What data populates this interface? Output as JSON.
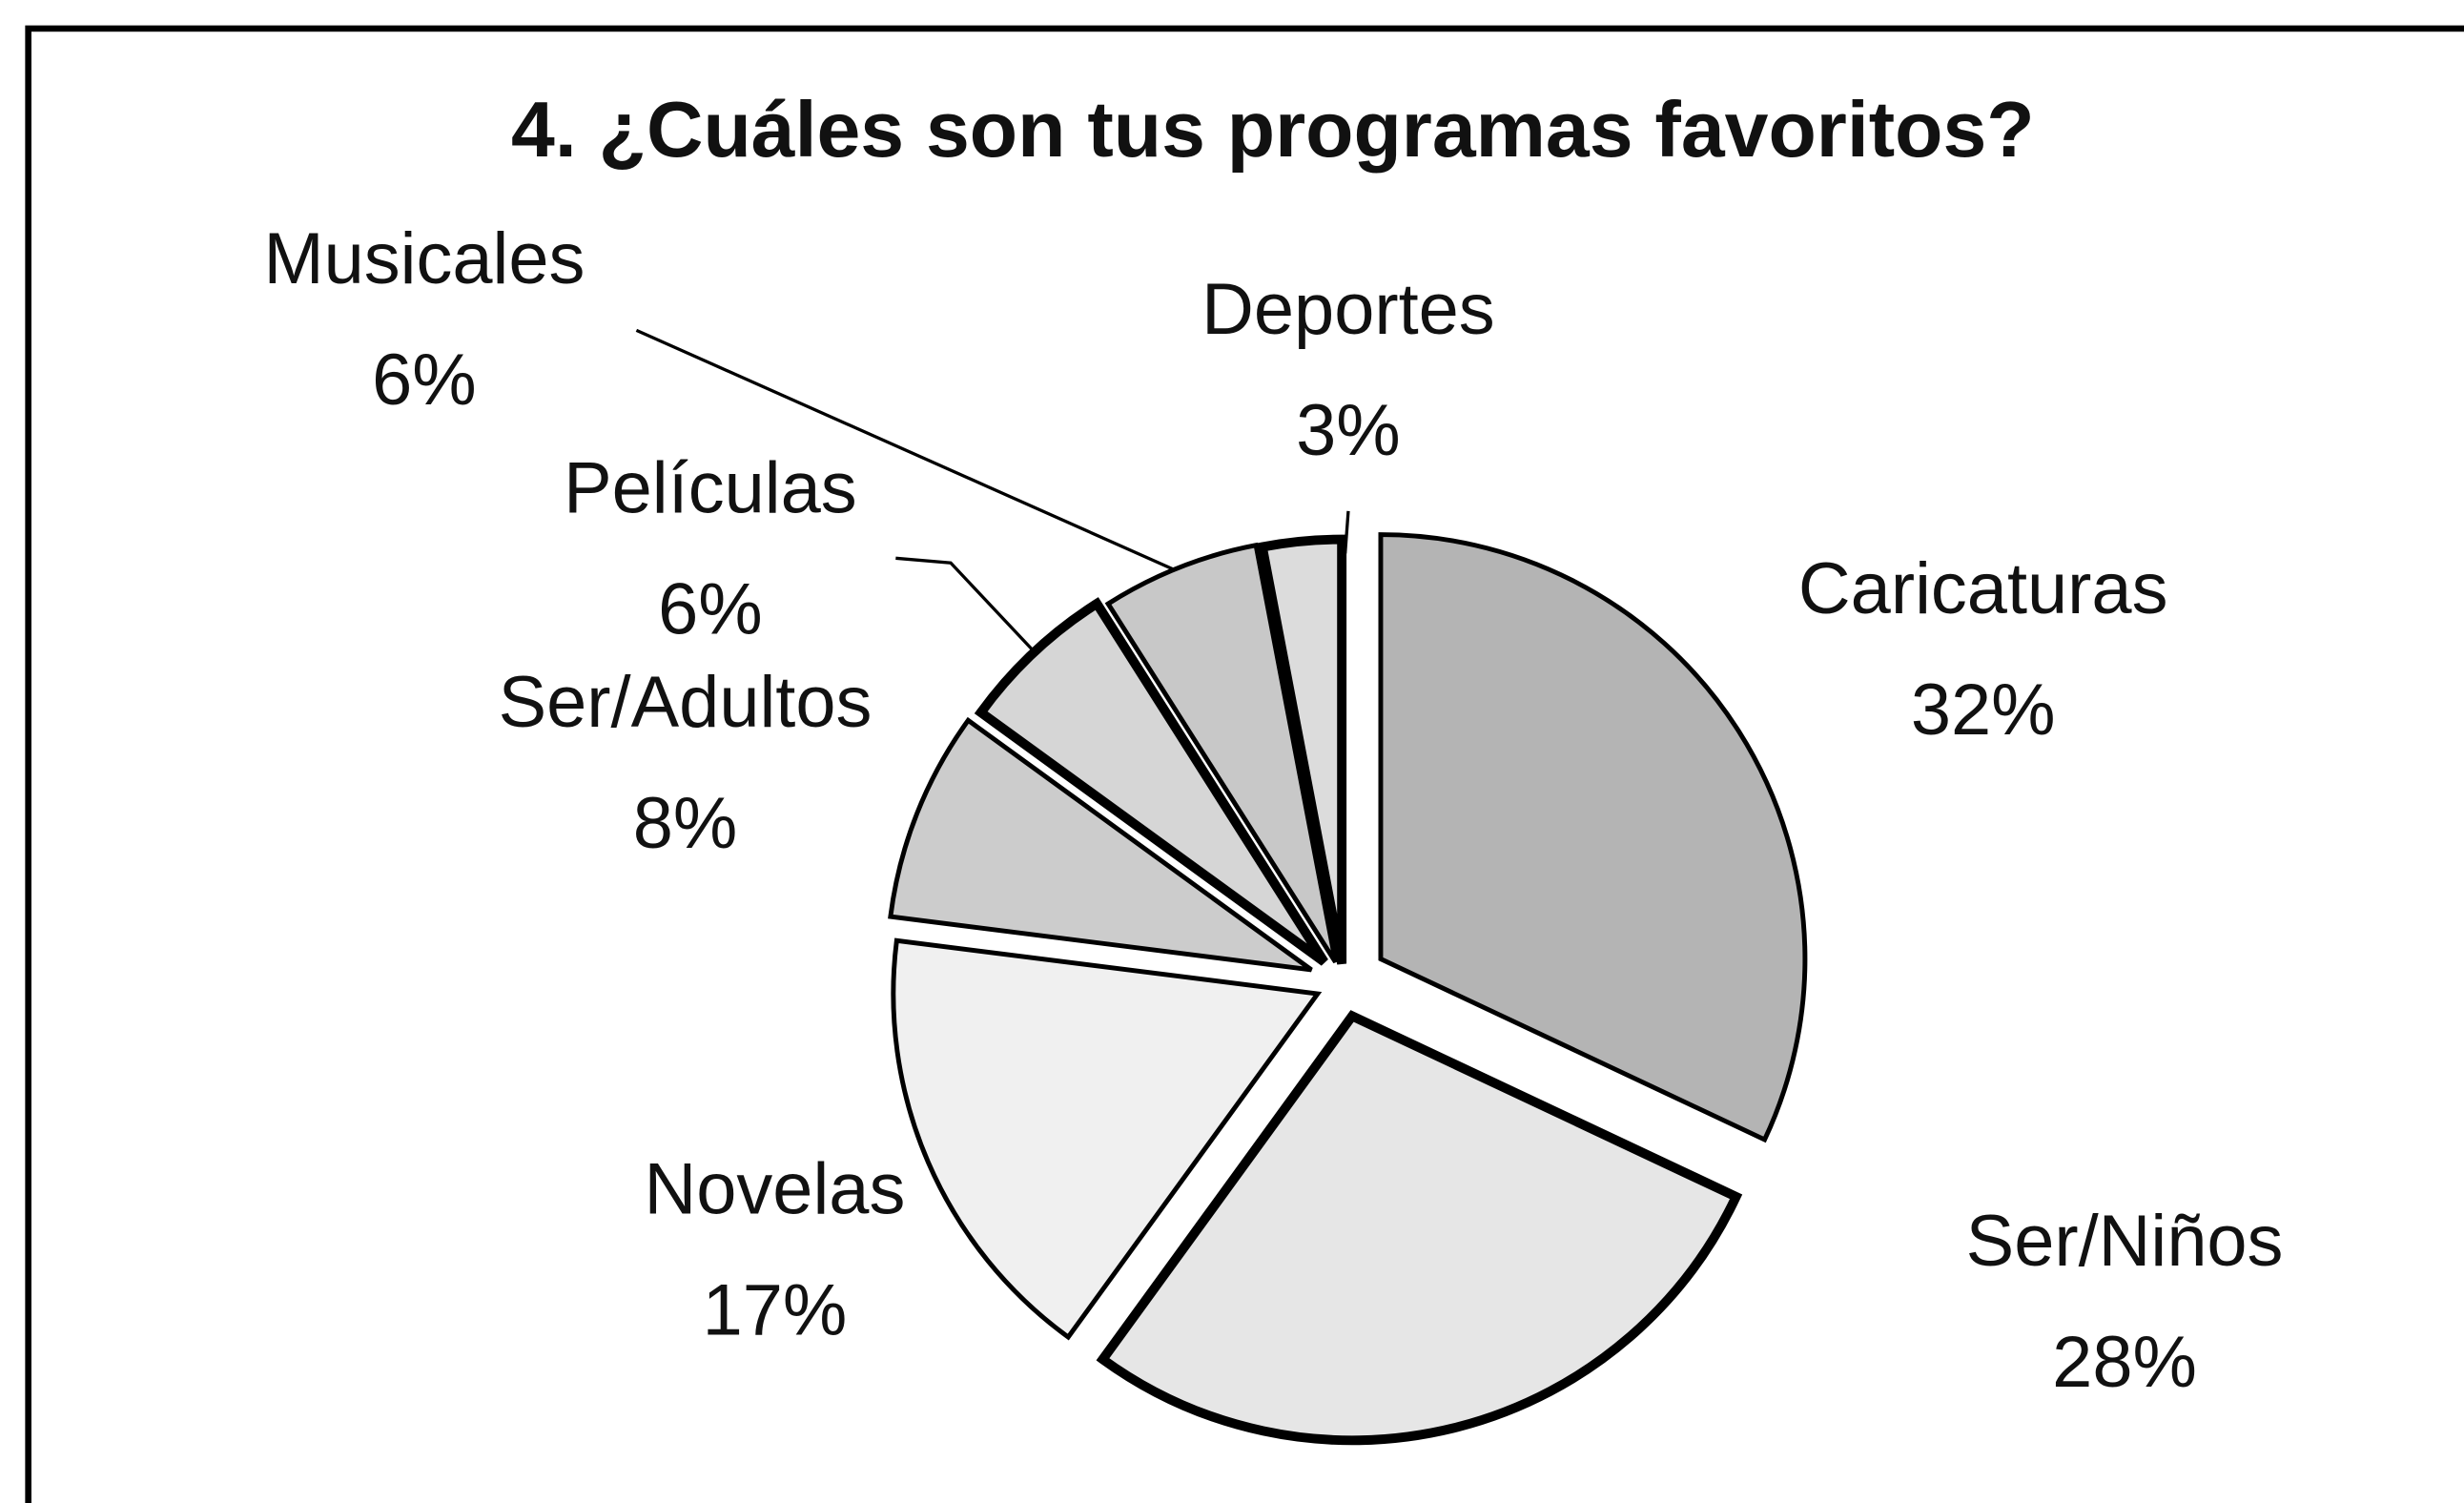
{
  "chart_data": {
    "type": "pie",
    "title": "4. ¿Cuáles son tus programas favoritos?",
    "categories": [
      "Caricaturas",
      "Ser/Niños",
      "Novelas",
      "Ser/Adultos",
      "Películas",
      "Musicales",
      "Deportes"
    ],
    "values": [
      32,
      28,
      17,
      8,
      6,
      6,
      3
    ],
    "value_labels": [
      "32%",
      "28%",
      "17%",
      "8%",
      "6%",
      "6%",
      "3%"
    ],
    "colors": [
      "#b4b4b4",
      "#e6e6e6",
      "#f0f0f0",
      "#cccccc",
      "#d6d6d6",
      "#c8c8c8",
      "#dcdcdc"
    ]
  }
}
